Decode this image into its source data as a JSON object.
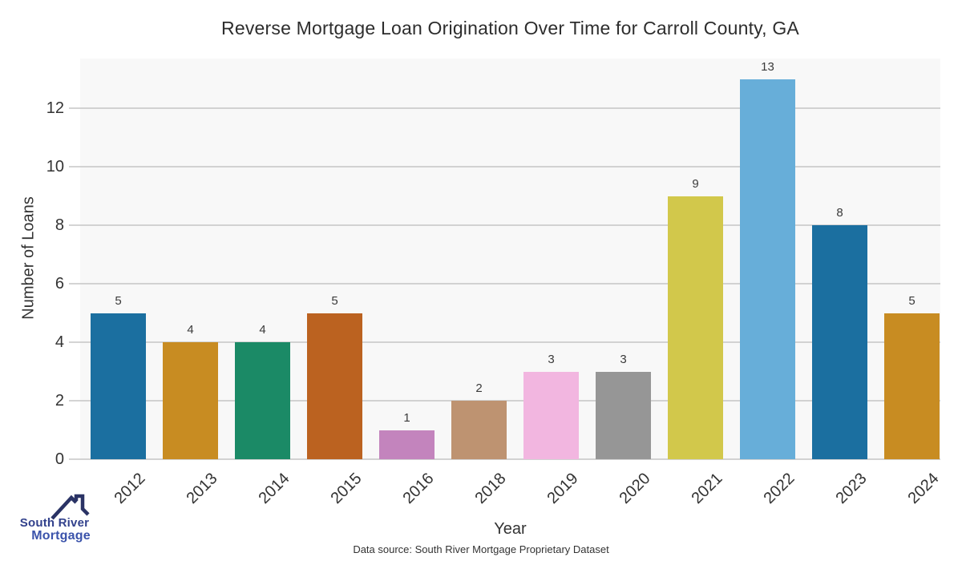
{
  "chart_data": {
    "type": "bar",
    "title": "Reverse Mortgage Loan Origination Over Time for Carroll County, GA",
    "categories": [
      "2012",
      "2013",
      "2014",
      "2015",
      "2016",
      "2018",
      "2019",
      "2020",
      "2021",
      "2022",
      "2023",
      "2024"
    ],
    "values": [
      5,
      4,
      4,
      5,
      1,
      2,
      3,
      3,
      9,
      13,
      8,
      5
    ],
    "bar_colors": [
      "#1b6fa0",
      "#c88c22",
      "#1b8a66",
      "#bb6220",
      "#c384bd",
      "#be9371",
      "#f2b6e0",
      "#969696",
      "#d2c84b",
      "#67aed9",
      "#1b6fa0",
      "#c88c22"
    ],
    "xlabel": "Year",
    "ylabel": "Number of Loans",
    "yticks": [
      0,
      2,
      4,
      6,
      8,
      10,
      12
    ],
    "ylim": [
      0,
      13.7
    ],
    "grid": true,
    "legend": false,
    "plot_bg": "#f8f8f8",
    "grid_color": "#d2d2d2",
    "value_label_color": "#3a3a3a"
  },
  "footer": {
    "source": "Data source: South River Mortgage Proprietary Dataset"
  },
  "logo": {
    "line1": "South River",
    "line2": "Mortgage",
    "icon": "house-roof-icon",
    "line1_color": "#32418c",
    "line2_color": "#3b53ab",
    "roof_color": "#2a3365"
  }
}
